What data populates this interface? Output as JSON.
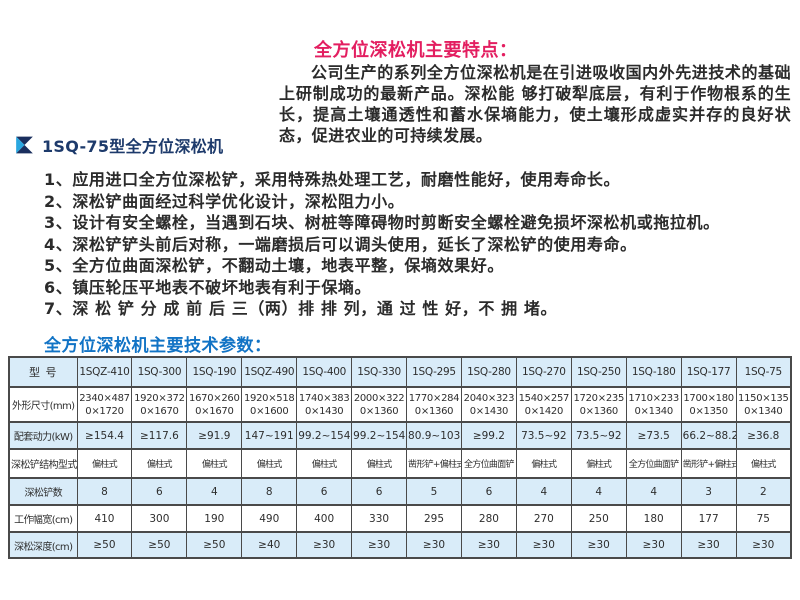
{
  "header": {
    "features_title": "全方位深松机主要特点：",
    "intro": "公司生产的系列全方位深松机是在引进吸收国内外先进技术的基础上研制成功的最新产品。深松能 够打破犁底层，有利于作物根系的生长，提高土壤通透性和蓄水保墒能力，使土壤形成虚实并存的良好状态，促进农业的可持续发展。"
  },
  "product": {
    "title": "1SQ-75型全方位深松机",
    "logo_icon": "triangle-square-logo"
  },
  "features": [
    "1、应用进口全方位深松铲，采用特殊热处理工艺，耐磨性能好，使用寿命长。",
    "2、深松铲曲面经过科学优化设计，深松阻力小。",
    "3、设计有安全螺栓，当遇到石块、树桩等障碍物时剪断安全螺栓避免损坏深松机或拖拉机。",
    "4、深松铲铲头前后对称，一端磨损后可以调头使用，延长了深松铲的使用寿命。",
    "5、全方位曲面深松铲，不翻动土壤，地表平整，保墒效果好。",
    "6、镇压轮压平地表不破坏地表有利于保墒。",
    "7、深 松 铲 分 成 前 后 三（两）排 排 列，通 过 性 好，不 拥 堵。"
  ],
  "params": {
    "title": "全方位深松机主要技术参数："
  },
  "table": {
    "columns": [
      "型 号",
      "1SQZ-410",
      "1SQ-300",
      "1SQ-190",
      "1SQZ-490",
      "1SQ-400",
      "1SQ-330",
      "1SQ-295",
      "1SQ-280",
      "1SQ-270",
      "1SQ-250",
      "1SQ-180",
      "1SQ-177",
      "1SQ-75"
    ],
    "rows": [
      {
        "label": "外形尺寸(mm)",
        "values": [
          "2340×4870×1720",
          "1920×3720×1670",
          "1670×2600×1670",
          "1920×5180×1600",
          "1740×3830×1430",
          "2000×3220×1360",
          "1770×2840×1360",
          "2040×3230×1430",
          "1540×2570×1420",
          "1720×2350×1360",
          "1710×2330×1340",
          "1700×1800×1350",
          "1150×1350×1340"
        ]
      },
      {
        "label": "配套动力(kW)",
        "values": [
          "≥154.4",
          "≥117.6",
          "≥91.9",
          "147~191",
          "99.2~154.4",
          "99.2~154.4",
          "80.9~103",
          "≥99.2",
          "73.5~92",
          "73.5~92",
          "≥73.5",
          "66.2~88.2",
          "≥36.8"
        ]
      },
      {
        "label": "深松铲结构型式",
        "values": [
          "偏柱式",
          "偏柱式",
          "偏柱式",
          "偏柱式",
          "偏柱式",
          "偏柱式",
          "凿形铲+偏柱式",
          "全方位曲面铲",
          "偏柱式",
          "偏柱式",
          "全方位曲面铲",
          "凿形铲+偏柱式",
          "偏柱式"
        ]
      },
      {
        "label": "深松铲数",
        "values": [
          "8",
          "6",
          "4",
          "8",
          "6",
          "6",
          "5",
          "6",
          "4",
          "4",
          "4",
          "3",
          "2"
        ]
      },
      {
        "label": "工作幅宽(cm)",
        "values": [
          "410",
          "300",
          "190",
          "490",
          "400",
          "330",
          "295",
          "280",
          "270",
          "250",
          "180",
          "177",
          "75"
        ]
      },
      {
        "label": "深松深度(cm)",
        "values": [
          "≥50",
          "≥50",
          "≥50",
          "≥40",
          "≥30",
          "≥30",
          "≥30",
          "≥30",
          "≥30",
          "≥30",
          "≥30",
          "≥30",
          "≥30"
        ]
      }
    ]
  },
  "colors": {
    "title_red": "#e31e60",
    "title_blue": "#1173c5",
    "product_navy": "#1d3a6b",
    "logo_light_blue": "#2aa7e0",
    "logo_dark_blue": "#1a2f5e",
    "table_stripe": "#d9ecf9",
    "table_border": "#4a4a4a",
    "body_text": "#2b2b2b"
  }
}
